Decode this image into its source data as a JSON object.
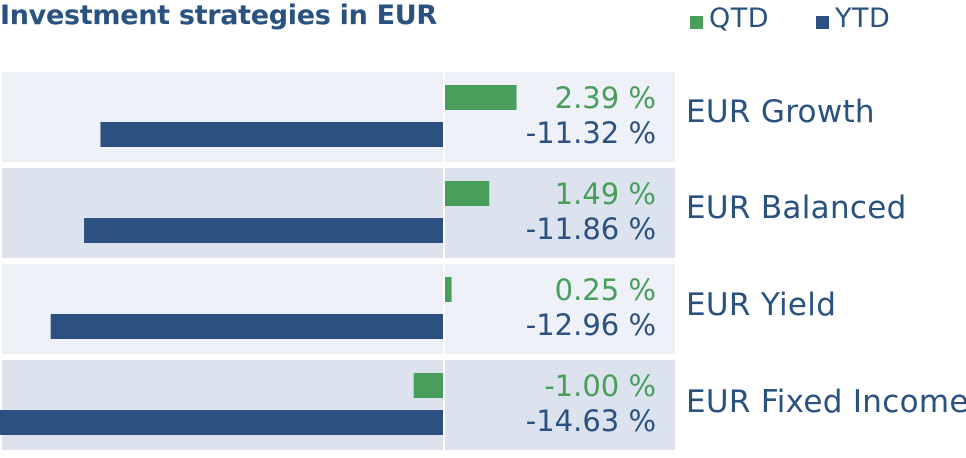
{
  "chart_data": {
    "type": "bar",
    "orientation": "horizontal",
    "title": "Investment strategies in EUR",
    "categories": [
      "EUR Growth",
      "EUR Balanced",
      "EUR Yield",
      "EUR Fixed Income"
    ],
    "series": [
      {
        "name": "QTD",
        "values": [
          2.39,
          1.49,
          0.25,
          -1.0
        ],
        "labels": [
          "2.39 %",
          "1.49 %",
          "0.25 %",
          "-1.00 %"
        ],
        "color": "#4a9e5c"
      },
      {
        "name": "YTD",
        "values": [
          -11.32,
          -11.86,
          -12.96,
          -14.63
        ],
        "labels": [
          "-11.32 %",
          "-11.86 %",
          "-12.96 %",
          "-14.63 %"
        ],
        "color": "#2c5180"
      }
    ],
    "legend_position": "top-right",
    "row_colors": [
      "#eef2f8",
      "#dce3ef"
    ],
    "label_color": "#2a5280"
  }
}
